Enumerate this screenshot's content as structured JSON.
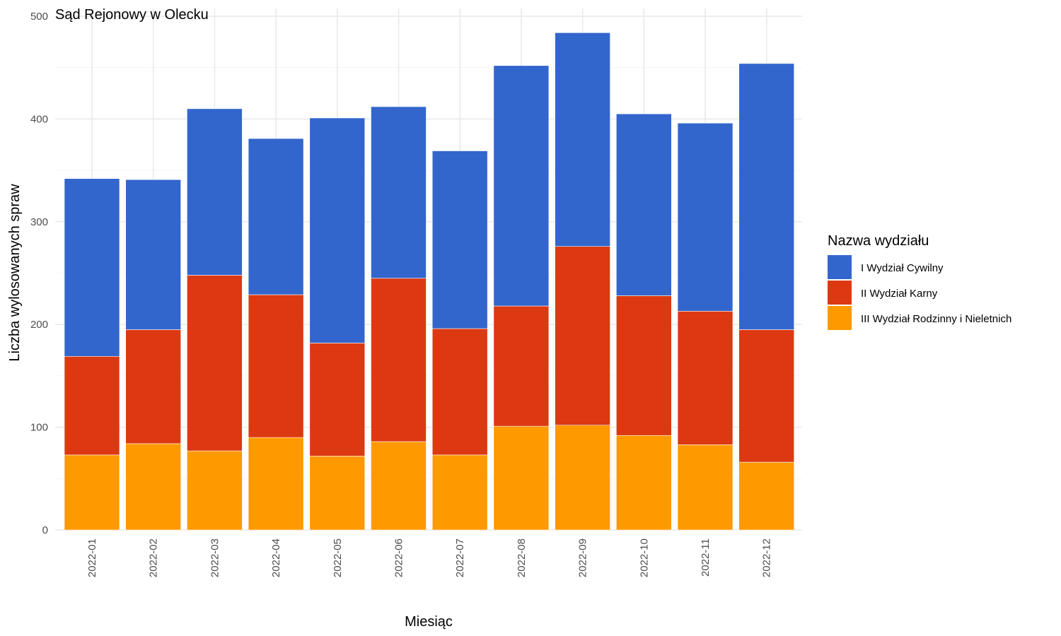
{
  "chart_data": {
    "type": "bar",
    "stacked": true,
    "title": "Sąd Rejonowy w Olecku",
    "xlabel": "Miesiąc",
    "ylabel": "Liczba wylosowanych spraw",
    "ylim": [
      0,
      500
    ],
    "yticks": [
      "0",
      "100",
      "200",
      "300",
      "400",
      "500"
    ],
    "grid": true,
    "legend_position": "right",
    "legend_title": "Nazwa wydziału",
    "categories": [
      "2022-01",
      "2022-02",
      "2022-03",
      "2022-04",
      "2022-05",
      "2022-06",
      "2022-07",
      "2022-08",
      "2022-09",
      "2022-10",
      "2022-11",
      "2022-12"
    ],
    "series": [
      {
        "name": "I Wydział Cywilny",
        "color": "#3366cc",
        "values": [
          173,
          146,
          162,
          152,
          219,
          167,
          173,
          234,
          208,
          177,
          183,
          259
        ]
      },
      {
        "name": "II Wydział Karny",
        "color": "#dc3912",
        "values": [
          96,
          111,
          171,
          139,
          110,
          159,
          123,
          117,
          174,
          136,
          130,
          129
        ]
      },
      {
        "name": "III Wydział Rodzinny i Nieletnich",
        "color": "#ff9900",
        "values": [
          73,
          84,
          77,
          90,
          72,
          86,
          73,
          101,
          102,
          92,
          83,
          66
        ]
      }
    ]
  }
}
